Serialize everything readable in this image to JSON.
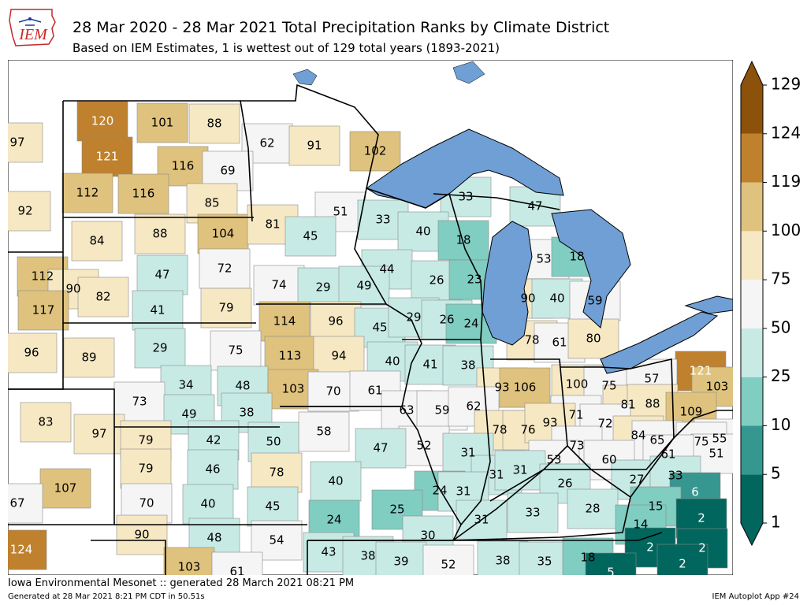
{
  "header": {
    "logo_text": "IEM",
    "title": "28 Mar 2020 - 28 Mar 2021 Total Precipitation Ranks by Climate District",
    "subtitle": "Based on IEM Estimates, 1 is wettest out of 129 total years (1893-2021)"
  },
  "footer": {
    "credit": "Iowa Environmental Mesonet :: generated 28 March 2021 08:21 PM",
    "generated": "Generated at 28 Mar 2021 8:21 PM CDT in 50.51s",
    "app": "IEM Autoplot App #24"
  },
  "chart_data": {
    "type": "heatmap",
    "value_meaning": "precipitation rank, 1 = wettest of 129 years",
    "colorbar": {
      "ticks": [
        1,
        5,
        10,
        25,
        50,
        75,
        100,
        119,
        124,
        129
      ],
      "bins": [
        {
          "from": 1,
          "to": 5,
          "color": "#01665e"
        },
        {
          "from": 5,
          "to": 10,
          "color": "#35978f"
        },
        {
          "from": 10,
          "to": 25,
          "color": "#80cdc1"
        },
        {
          "from": 25,
          "to": 50,
          "color": "#c7eae5"
        },
        {
          "from": 50,
          "to": 75,
          "color": "#f5f5f5"
        },
        {
          "from": 75,
          "to": 100,
          "color": "#f6e8c3"
        },
        {
          "from": 100,
          "to": 119,
          "color": "#dfc27d"
        },
        {
          "from": 119,
          "to": 124,
          "color": "#bf812d"
        },
        {
          "from": 124,
          "to": 129,
          "color": "#8c510a"
        }
      ]
    },
    "districts": [
      {
        "rank": 97
      },
      {
        "rank": 120
      },
      {
        "rank": 101
      },
      {
        "rank": 88
      },
      {
        "rank": 62
      },
      {
        "rank": 91
      },
      {
        "rank": 102
      },
      {
        "rank": 121
      },
      {
        "rank": 116
      },
      {
        "rank": 69
      },
      {
        "rank": 92
      },
      {
        "rank": 112
      },
      {
        "rank": 116
      },
      {
        "rank": 85
      },
      {
        "rank": 33
      },
      {
        "rank": 47
      },
      {
        "rank": 51
      },
      {
        "rank": 33
      },
      {
        "rank": 84
      },
      {
        "rank": 88
      },
      {
        "rank": 104
      },
      {
        "rank": 81
      },
      {
        "rank": 45
      },
      {
        "rank": 40
      },
      {
        "rank": 18
      },
      {
        "rank": 53
      },
      {
        "rank": 18
      },
      {
        "rank": 112
      },
      {
        "rank": 47
      },
      {
        "rank": 72
      },
      {
        "rank": 44
      },
      {
        "rank": 26
      },
      {
        "rank": 23
      },
      {
        "rank": 90
      },
      {
        "rank": 82
      },
      {
        "rank": 74
      },
      {
        "rank": 29
      },
      {
        "rank": 49
      },
      {
        "rank": 90
      },
      {
        "rank": 40
      },
      {
        "rank": 59
      },
      {
        "rank": 117
      },
      {
        "rank": 41
      },
      {
        "rank": 79
      },
      {
        "rank": 114
      },
      {
        "rank": 96
      },
      {
        "rank": 45
      },
      {
        "rank": 29
      },
      {
        "rank": 26
      },
      {
        "rank": 24
      },
      {
        "rank": 78
      },
      {
        "rank": 61
      },
      {
        "rank": 80
      },
      {
        "rank": 96
      },
      {
        "rank": 29
      },
      {
        "rank": 75
      },
      {
        "rank": 113
      },
      {
        "rank": 94
      },
      {
        "rank": 40
      },
      {
        "rank": 41
      },
      {
        "rank": 38
      },
      {
        "rank": 89
      },
      {
        "rank": 121
      },
      {
        "rank": 34
      },
      {
        "rank": 48
      },
      {
        "rank": 93
      },
      {
        "rank": 106
      },
      {
        "rank": 100
      },
      {
        "rank": 75
      },
      {
        "rank": 57
      },
      {
        "rank": 103
      },
      {
        "rank": 73
      },
      {
        "rank": 103
      },
      {
        "rank": 70
      },
      {
        "rank": 61
      },
      {
        "rank": 83
      },
      {
        "rank": 49
      },
      {
        "rank": 38
      },
      {
        "rank": 63
      },
      {
        "rank": 59
      },
      {
        "rank": 62
      },
      {
        "rank": 81
      },
      {
        "rank": 88
      },
      {
        "rank": 109
      },
      {
        "rank": 97
      },
      {
        "rank": 71
      },
      {
        "rank": 72
      },
      {
        "rank": 78
      },
      {
        "rank": 76
      },
      {
        "rank": 93
      },
      {
        "rank": 58
      },
      {
        "rank": 79
      },
      {
        "rank": 42
      },
      {
        "rank": 50
      },
      {
        "rank": 52
      },
      {
        "rank": 84
      },
      {
        "rank": 65
      },
      {
        "rank": 55
      },
      {
        "rank": 75
      },
      {
        "rank": 47
      },
      {
        "rank": 73
      },
      {
        "rank": 31
      },
      {
        "rank": 51
      },
      {
        "rank": 61
      },
      {
        "rank": 53
      },
      {
        "rank": 60
      },
      {
        "rank": 79
      },
      {
        "rank": 46
      },
      {
        "rank": 78
      },
      {
        "rank": 107
      },
      {
        "rank": 40
      },
      {
        "rank": 31
      },
      {
        "rank": 31
      },
      {
        "rank": 27
      },
      {
        "rank": 33
      },
      {
        "rank": 26
      },
      {
        "rank": 67
      },
      {
        "rank": 70
      },
      {
        "rank": 40
      },
      {
        "rank": 45
      },
      {
        "rank": 24
      },
      {
        "rank": 31
      },
      {
        "rank": 6
      },
      {
        "rank": 25
      },
      {
        "rank": 28
      },
      {
        "rank": 15
      },
      {
        "rank": 33
      },
      {
        "rank": 24
      },
      {
        "rank": 31
      },
      {
        "rank": 14
      },
      {
        "rank": 2
      },
      {
        "rank": 90
      },
      {
        "rank": 48
      },
      {
        "rank": 54
      },
      {
        "rank": 30
      },
      {
        "rank": 124
      },
      {
        "rank": 2
      },
      {
        "rank": 2
      },
      {
        "rank": 43
      },
      {
        "rank": 38
      },
      {
        "rank": 39
      },
      {
        "rank": 52
      },
      {
        "rank": 38
      },
      {
        "rank": 35
      },
      {
        "rank": 18
      },
      {
        "rank": 2
      },
      {
        "rank": 103
      },
      {
        "rank": 61
      },
      {
        "rank": 5
      }
    ]
  }
}
